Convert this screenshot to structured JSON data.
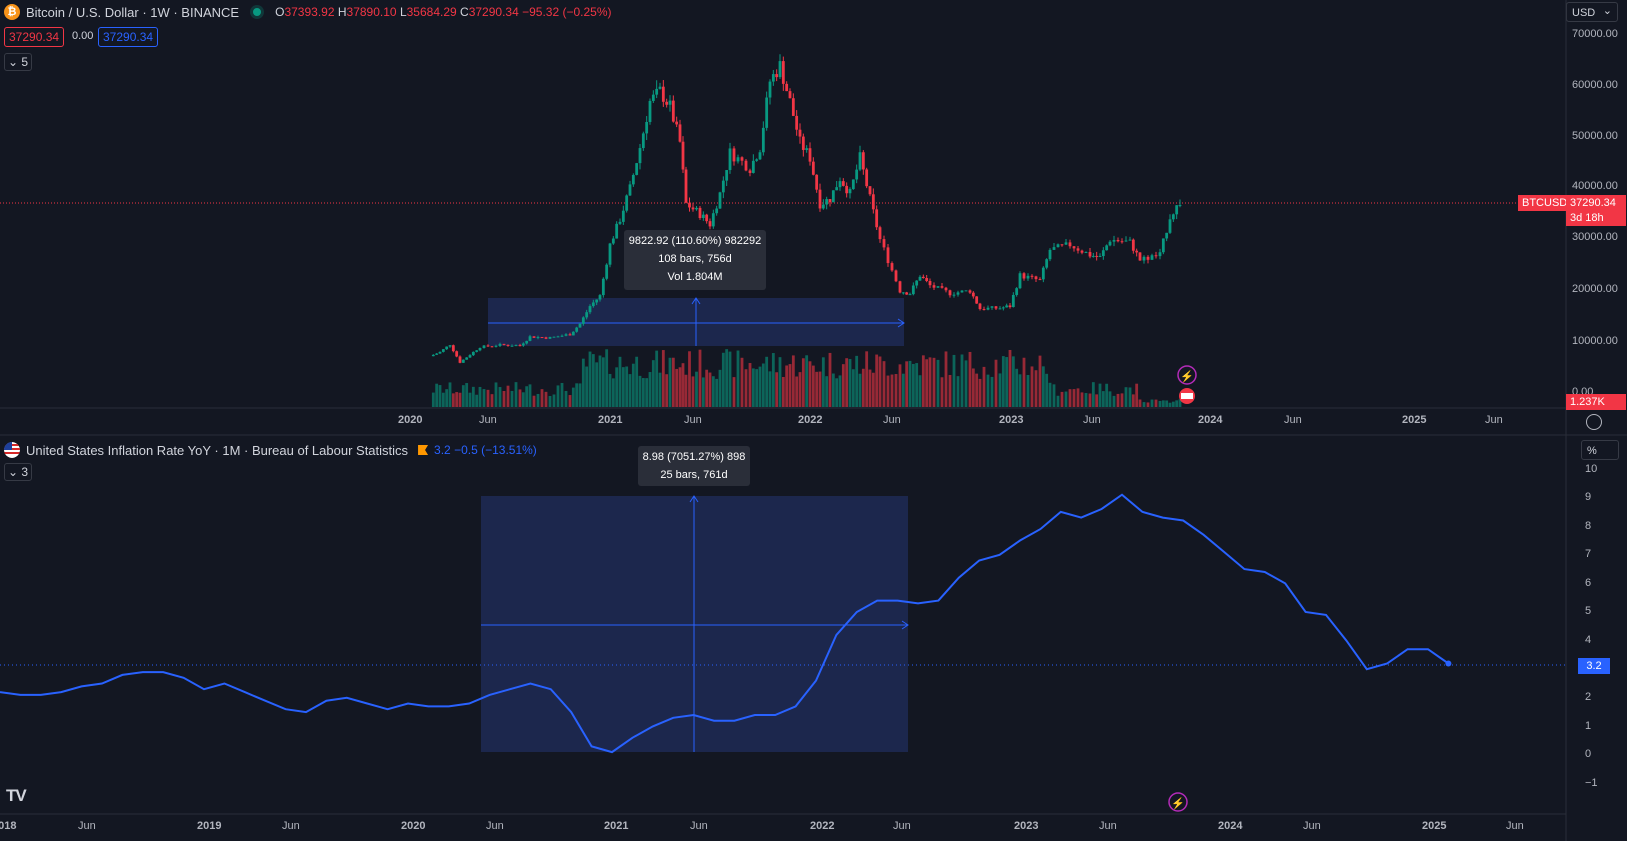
{
  "top_pane": {
    "symbol_title": "Bitcoin / U.S. Dollar · 1W · BINANCE",
    "btc_logo_glyph": "₿",
    "market_status_icon": "market-open-dot",
    "ohlc": {
      "o_label": "O",
      "o": "37393.92",
      "h_label": "H",
      "h": "37890.10",
      "l_label": "L",
      "l": "35684.29",
      "c_label": "C",
      "c": "37290.34",
      "change": "−95.32 (−0.25%)"
    },
    "sell_price": "37290.34",
    "spread": "0.00",
    "buy_price": "37290.34",
    "indicator_count": "5",
    "currency": "USD",
    "last_symbol_tag": "BTCUSD",
    "last_price_tag": "37290.34",
    "countdown": "3d 18h",
    "volume_tag": "1.237K",
    "y_ticks": [
      "70000.00",
      "60000.00",
      "50000.00",
      "40000.00",
      "30000.00",
      "20000.00",
      "10000.00",
      "0.00"
    ],
    "x_ticks": [
      "2020",
      "Jun",
      "2021",
      "Jun",
      "2022",
      "Jun",
      "2023",
      "Jun",
      "2024",
      "Jun",
      "2025",
      "Jun"
    ],
    "measure_tooltip": {
      "line1": "9822.92 (110.60%) 982292",
      "line2": "108 bars, 756d",
      "line3": "Vol 1.804M"
    }
  },
  "bottom_pane": {
    "title": "United States Inflation Rate YoY · 1M · Bureau of Labour Statistics",
    "values_text": "3.2  −0.5 (−13.51%)",
    "indicator_count": "3",
    "unit_button": "%",
    "last_value_tag": "3.2",
    "y_ticks": [
      "10",
      "9",
      "8",
      "7",
      "6",
      "5",
      "4",
      "3",
      "2",
      "1",
      "0",
      "−1"
    ],
    "x_ticks": [
      "2018",
      "Jun",
      "2019",
      "Jun",
      "2020",
      "Jun",
      "2021",
      "Jun",
      "2022",
      "Jun",
      "2023",
      "Jun",
      "2024",
      "Jun",
      "2025",
      "Jun"
    ],
    "measure_tooltip": {
      "line1": "8.98 (7051.27%) 898",
      "line2": "25 bars, 761d"
    }
  },
  "logo_text": "TV",
  "colors": {
    "background": "#131722",
    "up": "#089981",
    "down": "#f23645",
    "line": "#2962ff",
    "measure_fill": "#1e2a55"
  },
  "chart_data": [
    {
      "type": "candlestick",
      "title": "Bitcoin / U.S. Dollar · 1W · BINANCE",
      "x_range": [
        "2020-01",
        "2025-09"
      ],
      "ylim": [
        0,
        70000
      ],
      "price_points": [
        [
          2020.1,
          7200
        ],
        [
          2020.15,
          8000
        ],
        [
          2020.2,
          9500
        ],
        [
          2020.25,
          6000
        ],
        [
          2020.3,
          7500
        ],
        [
          2020.35,
          9000
        ],
        [
          2020.45,
          9400
        ],
        [
          2020.55,
          9300
        ],
        [
          2020.6,
          11000
        ],
        [
          2020.7,
          10800
        ],
        [
          2020.8,
          11500
        ],
        [
          2020.85,
          13500
        ],
        [
          2020.9,
          17000
        ],
        [
          2020.95,
          19000
        ],
        [
          2021.0,
          29000
        ],
        [
          2021.05,
          34000
        ],
        [
          2021.1,
          40000
        ],
        [
          2021.15,
          48000
        ],
        [
          2021.2,
          57000
        ],
        [
          2021.25,
          59000
        ],
        [
          2021.3,
          56000
        ],
        [
          2021.35,
          49000
        ],
        [
          2021.38,
          37000
        ],
        [
          2021.45,
          35000
        ],
        [
          2021.5,
          33000
        ],
        [
          2021.55,
          39000
        ],
        [
          2021.6,
          47000
        ],
        [
          2021.7,
          44000
        ],
        [
          2021.75,
          48000
        ],
        [
          2021.8,
          61000
        ],
        [
          2021.85,
          64000
        ],
        [
          2021.9,
          57000
        ],
        [
          2021.95,
          49000
        ],
        [
          2022.0,
          46000
        ],
        [
          2022.05,
          37000
        ],
        [
          2022.1,
          38000
        ],
        [
          2022.15,
          42000
        ],
        [
          2022.2,
          39000
        ],
        [
          2022.25,
          46000
        ],
        [
          2022.3,
          38000
        ],
        [
          2022.35,
          30000
        ],
        [
          2022.45,
          20000
        ],
        [
          2022.5,
          19500
        ],
        [
          2022.55,
          23000
        ],
        [
          2022.6,
          21000
        ],
        [
          2022.7,
          19500
        ],
        [
          2022.8,
          20000
        ],
        [
          2022.85,
          16500
        ],
        [
          2022.95,
          16600
        ],
        [
          2023.0,
          17000
        ],
        [
          2023.05,
          23000
        ],
        [
          2023.15,
          22000
        ],
        [
          2023.2,
          28000
        ],
        [
          2023.3,
          29000
        ],
        [
          2023.4,
          27000
        ],
        [
          2023.45,
          26500
        ],
        [
          2023.5,
          30000
        ],
        [
          2023.6,
          29500
        ],
        [
          2023.65,
          26000
        ],
        [
          2023.75,
          27000
        ],
        [
          2023.8,
          34500
        ],
        [
          2023.85,
          37290
        ]
      ],
      "volume_tag": "1.237K"
    },
    {
      "type": "line",
      "title": "United States Inflation Rate YoY · 1M · Bureau of Labour Statistics",
      "ylim": [
        -1,
        10
      ],
      "series": [
        {
          "name": "United States Inflation Rate YoY",
          "x": [
            "2017-11",
            "2017-12",
            "2018-01",
            "2018-02",
            "2018-03",
            "2018-04",
            "2018-05",
            "2018-06",
            "2018-07",
            "2018-08",
            "2018-09",
            "2018-10",
            "2018-11",
            "2018-12",
            "2019-01",
            "2019-02",
            "2019-03",
            "2019-04",
            "2019-05",
            "2019-06",
            "2019-07",
            "2019-08",
            "2019-09",
            "2019-10",
            "2019-11",
            "2019-12",
            "2020-01",
            "2020-02",
            "2020-03",
            "2020-04",
            "2020-05",
            "2020-06",
            "2020-07",
            "2020-08",
            "2020-09",
            "2020-10",
            "2020-11",
            "2020-12",
            "2021-01",
            "2021-02",
            "2021-03",
            "2021-04",
            "2021-05",
            "2021-06",
            "2021-07",
            "2021-08",
            "2021-09",
            "2021-10",
            "2021-11",
            "2021-12",
            "2022-01",
            "2022-02",
            "2022-03",
            "2022-04",
            "2022-05",
            "2022-06",
            "2022-07",
            "2022-08",
            "2022-09",
            "2022-10",
            "2022-11",
            "2022-12",
            "2023-01",
            "2023-02",
            "2023-03",
            "2023-04",
            "2023-05",
            "2023-06",
            "2023-07",
            "2023-08",
            "2023-09",
            "2023-10"
          ],
          "values": [
            2.2,
            2.1,
            2.1,
            2.2,
            2.4,
            2.5,
            2.8,
            2.9,
            2.9,
            2.7,
            2.3,
            2.5,
            2.2,
            1.9,
            1.6,
            1.5,
            1.9,
            2.0,
            1.8,
            1.6,
            1.8,
            1.7,
            1.7,
            1.8,
            2.1,
            2.3,
            2.5,
            2.3,
            1.5,
            0.3,
            0.1,
            0.6,
            1.0,
            1.3,
            1.4,
            1.2,
            1.2,
            1.4,
            1.4,
            1.7,
            2.6,
            4.2,
            5.0,
            5.4,
            5.4,
            5.3,
            5.4,
            6.2,
            6.8,
            7.0,
            7.5,
            7.9,
            8.5,
            8.3,
            8.6,
            9.1,
            8.5,
            8.3,
            8.2,
            7.7,
            7.1,
            6.5,
            6.4,
            6.0,
            5.0,
            4.9,
            4.0,
            3.0,
            3.2,
            3.7,
            3.7,
            3.2
          ]
        }
      ]
    }
  ]
}
